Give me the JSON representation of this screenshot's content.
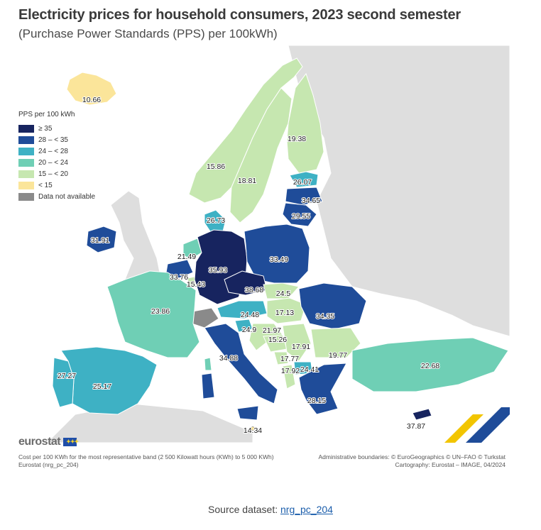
{
  "header": {
    "title": "Electricity prices for household consumers, 2023 second semester",
    "subtitle": "(Purchase Power Standards (PPS) per 100kWh)"
  },
  "legend": {
    "title": "PPS per 100 kWh",
    "items": [
      {
        "label": "≥ 35",
        "color": "#17245f"
      },
      {
        "label": "28 – < 35",
        "color": "#1f4c99"
      },
      {
        "label": "24 – < 28",
        "color": "#3eb1c4"
      },
      {
        "label": "20 – < 24",
        "color": "#6fcfb5"
      },
      {
        "label": "15 – < 20",
        "color": "#c6e7b0"
      },
      {
        "label": "< 15",
        "color": "#fbe59a"
      },
      {
        "label": "Data not available",
        "color": "#8a8a8a"
      }
    ]
  },
  "map_values": [
    {
      "id": "IS",
      "value": "10.66"
    },
    {
      "id": "NO",
      "value": "15.86"
    },
    {
      "id": "SE",
      "value": "18.81"
    },
    {
      "id": "FI",
      "value": "19.38"
    },
    {
      "id": "EE",
      "value": "26.07"
    },
    {
      "id": "LV",
      "value": "34.65"
    },
    {
      "id": "LT",
      "value": "29.55"
    },
    {
      "id": "DK",
      "value": "26.73"
    },
    {
      "id": "IE",
      "value": "31.91"
    },
    {
      "id": "NL",
      "value": "21.49"
    },
    {
      "id": "BE",
      "value": "33.76"
    },
    {
      "id": "LU",
      "value": "15.43"
    },
    {
      "id": "DE",
      "value": "35.93"
    },
    {
      "id": "PL",
      "value": "33.49"
    },
    {
      "id": "CZ",
      "value": "38.68"
    },
    {
      "id": "SK",
      "value": "24.5"
    },
    {
      "id": "AT",
      "value": "24.48"
    },
    {
      "id": "HU",
      "value": "17.13"
    },
    {
      "id": "RO",
      "value": "34.35"
    },
    {
      "id": "FR",
      "value": "23.86"
    },
    {
      "id": "SI",
      "value": "24.9"
    },
    {
      "id": "HR",
      "value": "21.97"
    },
    {
      "id": "BA",
      "value": "15.26"
    },
    {
      "id": "RS",
      "value": "17.91"
    },
    {
      "id": "BG",
      "value": "19.77"
    },
    {
      "id": "ME",
      "value": "17.77"
    },
    {
      "id": "AL",
      "value": "17.92"
    },
    {
      "id": "MK",
      "value": "24.41"
    },
    {
      "id": "GR",
      "value": "28.15"
    },
    {
      "id": "IT",
      "value": "34.88"
    },
    {
      "id": "MT",
      "value": "14.34"
    },
    {
      "id": "TR",
      "value": "22.68"
    },
    {
      "id": "PT",
      "value": "27.27"
    },
    {
      "id": "ES",
      "value": "25.17"
    },
    {
      "id": "CY",
      "value": "37.87"
    }
  ],
  "brand": {
    "name": "eurostat"
  },
  "notes": {
    "left": [
      "Cost per 100 KWh for the most representative band (2 500 Kilowatt hours (KWh) to 5 000 KWh)",
      "Eurostat (nrg_pc_204)"
    ],
    "right": [
      "Administrative boundaries: © EuroGeographics © UN–FAO © Turkstat",
      "Cartography: Eurostat – IMAGE, 04/2024"
    ]
  },
  "source": {
    "prefix": "Source dataset: ",
    "link": "nrg_pc_204"
  }
}
